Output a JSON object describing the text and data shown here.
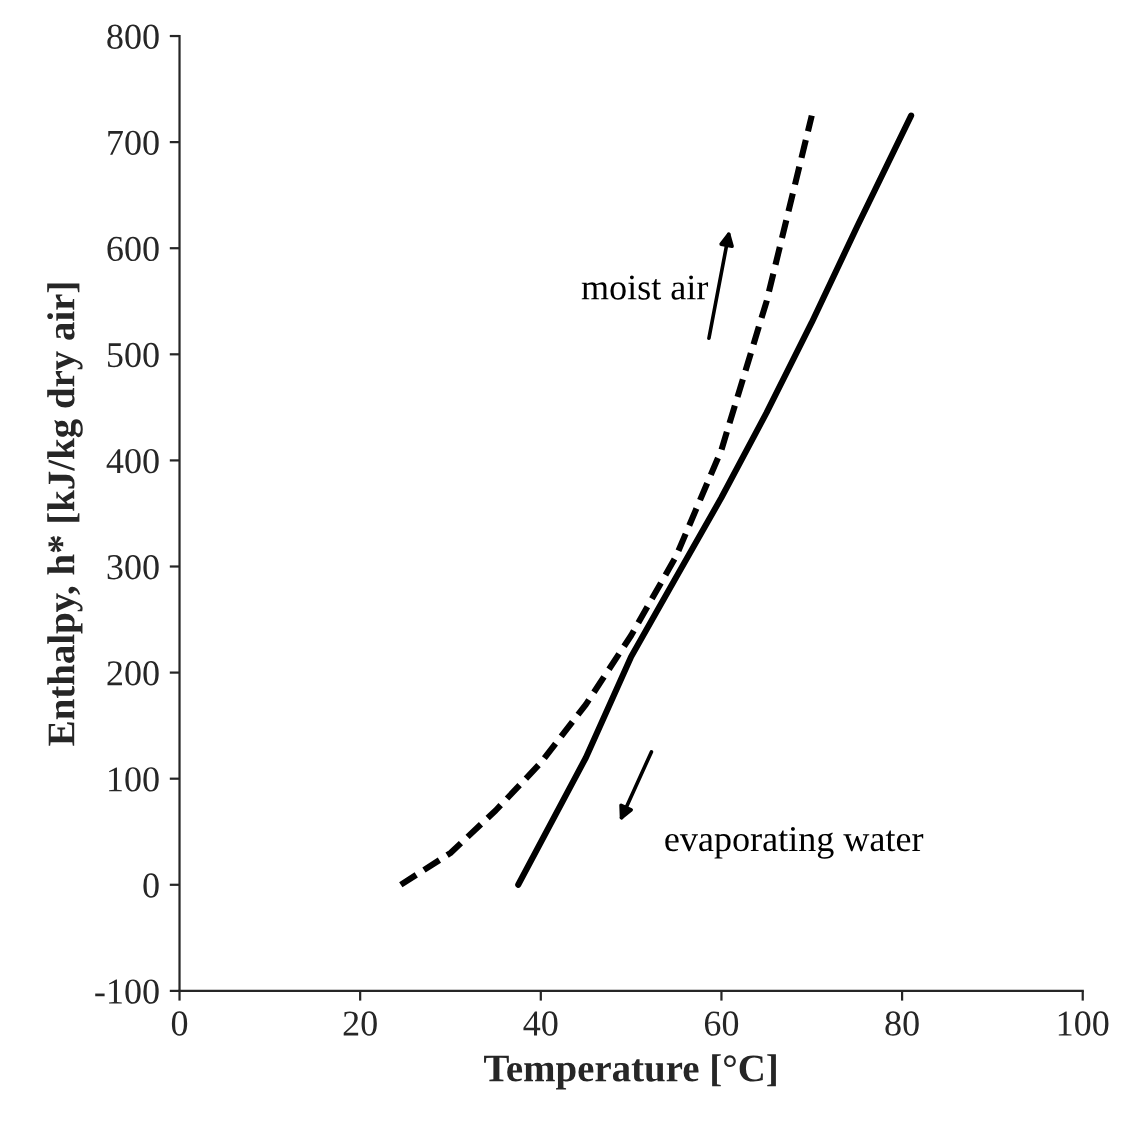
{
  "chart_data": {
    "type": "line",
    "xlabel": "Temperature [°C]",
    "ylabel": "Enthalpy, h* [kJ/kg dry air]",
    "xlim": [
      0,
      100
    ],
    "xticks": [
      0,
      20,
      40,
      60,
      80,
      100
    ],
    "ylim": [
      -100,
      800
    ],
    "yticks": [
      -100,
      0,
      100,
      200,
      300,
      400,
      500,
      600,
      700,
      800
    ],
    "grid": false,
    "legend": "right",
    "marker": "none",
    "series": [
      {
        "name": "moist air",
        "color": "#000000",
        "line_style": "dashed",
        "x": [
          24.5,
          30,
          35,
          40,
          45,
          50,
          55,
          60,
          65,
          70
        ],
        "values": [
          0,
          30,
          70,
          115,
          170,
          235,
          310,
          410,
          550,
          725
        ]
      },
      {
        "name": "evaporating water",
        "color": "#000000",
        "line_style": "solid",
        "x": [
          37.5,
          45,
          50,
          55,
          60,
          65,
          70,
          75,
          81
        ],
        "values": [
          0,
          120,
          215,
          290,
          365,
          445,
          530,
          620,
          725
        ]
      }
    ]
  }
}
